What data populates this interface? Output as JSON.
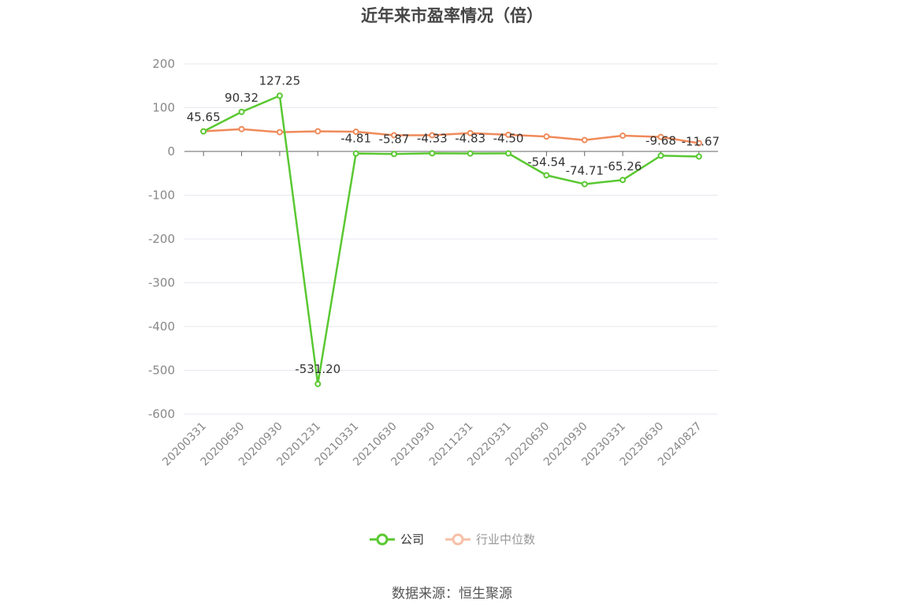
{
  "chart_data": {
    "type": "line",
    "title": "近年来市盈率情况（倍）",
    "categories": [
      "20200331",
      "20200630",
      "20200930",
      "20201231",
      "20210331",
      "20210630",
      "20210930",
      "20211231",
      "20220331",
      "20220630",
      "20220930",
      "20230331",
      "20230630",
      "20240827"
    ],
    "series": [
      {
        "name": "公司",
        "color": "#5ac832",
        "values": [
          45.65,
          90.32,
          127.25,
          -531.2,
          -4.81,
          -5.87,
          -4.33,
          -4.83,
          -4.5,
          -54.54,
          -74.71,
          -65.26,
          -9.68,
          -11.67
        ],
        "labels": [
          "45.65",
          "90.32",
          "127.25",
          "-531.20",
          "-4.81",
          "-5.87",
          "-4.33",
          "-4.83",
          "-4.50",
          "-54.54",
          "-74.71",
          "-65.26",
          "-9.68",
          "-11.67"
        ]
      },
      {
        "name": "行业中位数",
        "color": "#f08a5a",
        "values": [
          46,
          51,
          44,
          46,
          45,
          37,
          37,
          42,
          38,
          34,
          26,
          36,
          33,
          19
        ]
      }
    ],
    "ylim": [
      -600,
      200
    ],
    "yticks": [
      "200",
      "100",
      "0",
      "-100",
      "-200",
      "-300",
      "-400",
      "-500",
      "-600"
    ],
    "grid": true,
    "legend": "bottom"
  },
  "source_text": "数据来源：恒生聚源"
}
